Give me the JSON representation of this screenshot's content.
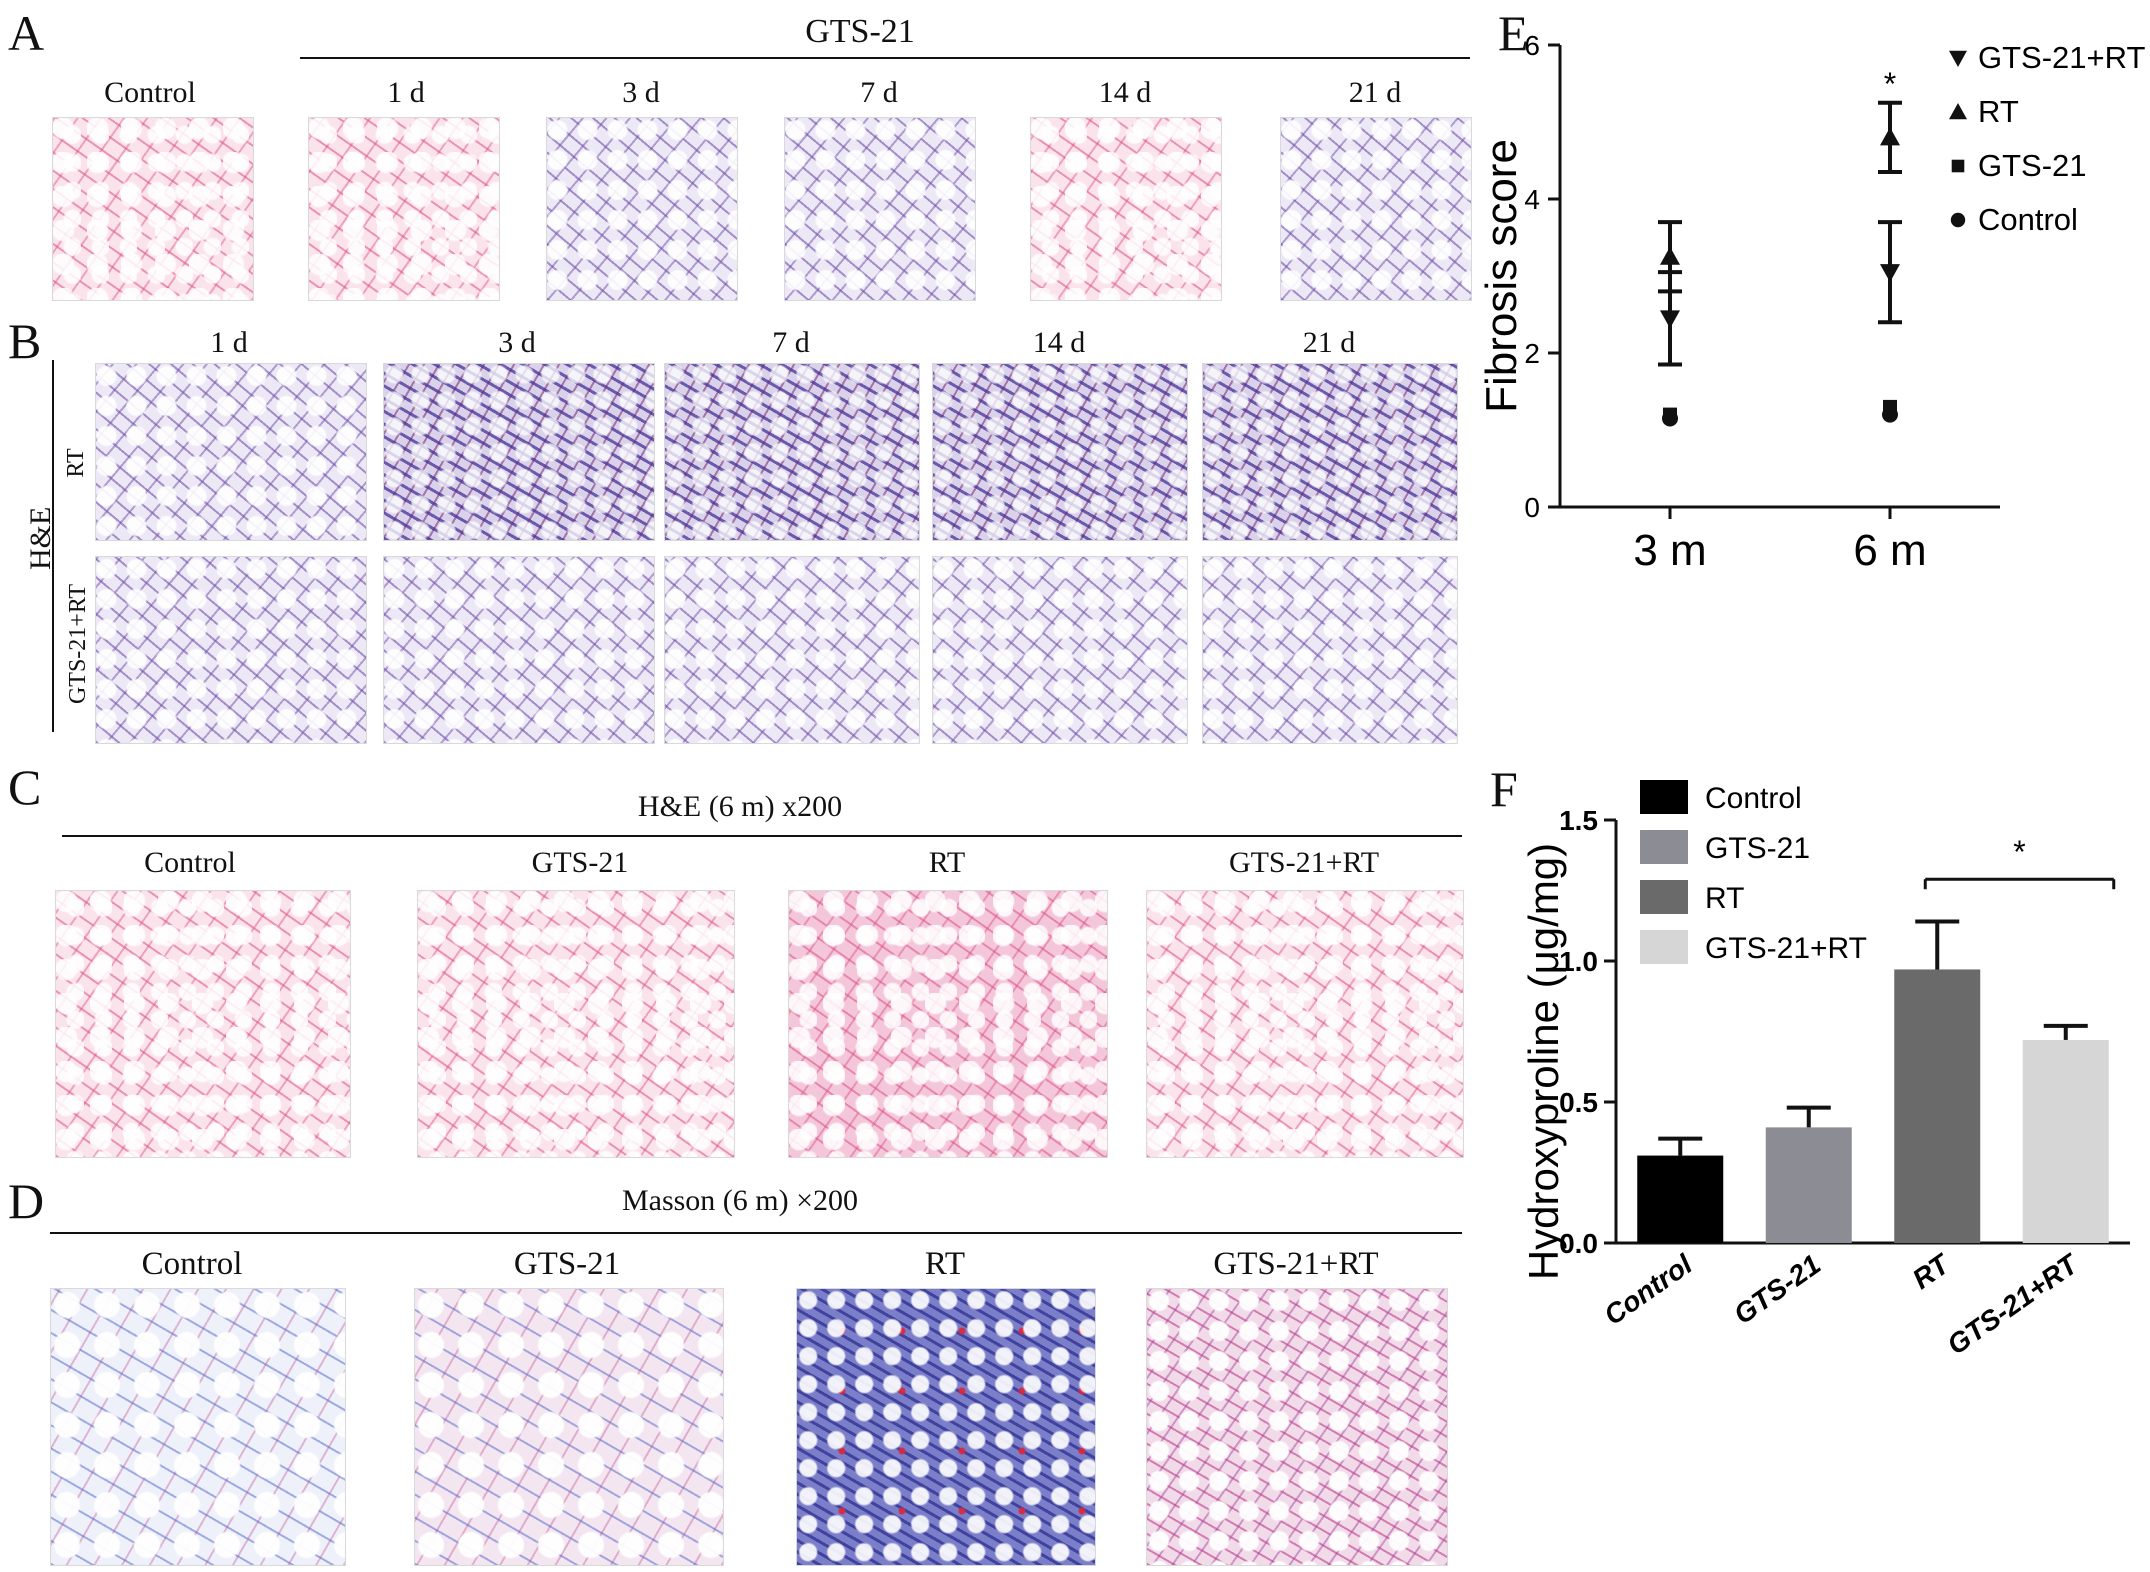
{
  "panel_letters": {
    "a": "A",
    "b": "B",
    "c": "C",
    "d": "D",
    "e": "E",
    "f": "F"
  },
  "panel_a": {
    "header": "GTS-21",
    "labels": [
      "Control",
      "1 d",
      "3 d",
      "7 d",
      "14 d",
      "21 d"
    ]
  },
  "panel_b": {
    "day_labels": [
      "1 d",
      "3 d",
      "7 d",
      "14 d",
      "21 d"
    ],
    "stain_label": "H&E",
    "row_labels": [
      "RT",
      "GTS-21+RT"
    ]
  },
  "panel_c": {
    "header": "H&E (6 m) x200",
    "labels": [
      "Control",
      "GTS-21",
      "RT",
      "GTS-21+RT"
    ]
  },
  "panel_d": {
    "header": "Masson (6 m) ×200",
    "labels": [
      "Control",
      "GTS-21",
      "RT",
      "GTS-21+RT"
    ]
  },
  "chart_data": [
    {
      "type": "scatter",
      "panel": "E",
      "categories": [
        "3 m",
        "6 m"
      ],
      "ylabel": "Fibrosis score",
      "xlabel": "",
      "ylim": [
        0,
        6
      ],
      "yticks": [
        0,
        2,
        4,
        6
      ],
      "legend_position": "top-right",
      "series": [
        {
          "name": "GTS-21+RT",
          "marker": "triangle-down",
          "values": [
            2.45,
            3.05
          ],
          "err": [
            0.6,
            0.65
          ]
        },
        {
          "name": "RT",
          "marker": "triangle-up",
          "values": [
            3.25,
            4.8
          ],
          "err": [
            0.45,
            0.45
          ]
        },
        {
          "name": "GTS-21",
          "marker": "square",
          "values": [
            1.2,
            1.3
          ],
          "err": [
            0,
            0
          ]
        },
        {
          "name": "Control",
          "marker": "circle",
          "values": [
            1.15,
            1.2
          ],
          "err": [
            0,
            0
          ]
        }
      ],
      "annotations": [
        {
          "category": "6 m",
          "text": "*"
        }
      ]
    },
    {
      "type": "bar",
      "panel": "F",
      "categories": [
        "Control",
        "GTS-21",
        "RT",
        "GTS-21+RT"
      ],
      "values": [
        0.31,
        0.41,
        0.97,
        0.72
      ],
      "err": [
        0.06,
        0.07,
        0.17,
        0.05
      ],
      "colors": [
        "#000000",
        "#8c8c94",
        "#6a6a6a",
        "#d6d6d6"
      ],
      "ylabel": "Hydroxyproline (μg/mg)",
      "xlabel": "",
      "ylim": [
        0,
        1.5
      ],
      "yticks": [
        "0.0",
        "0.5",
        "1.0",
        "1.5"
      ],
      "legend": [
        "Control",
        "GTS-21",
        "RT",
        "GTS-21+RT"
      ],
      "legend_position": "top-left",
      "annotations": [
        {
          "from": "RT",
          "to": "GTS-21+RT",
          "text": "*"
        }
      ]
    }
  ]
}
